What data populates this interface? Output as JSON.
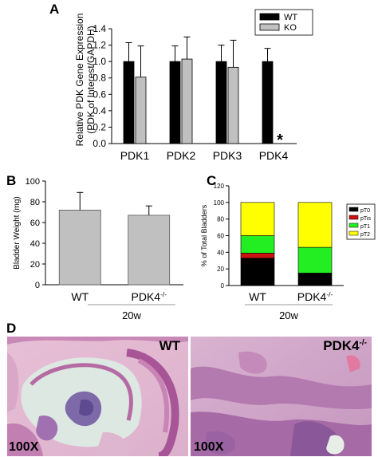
{
  "panels": {
    "a": "A",
    "b": "B",
    "c": "C",
    "d": "D"
  },
  "chart_data": [
    {
      "id": "A",
      "type": "bar",
      "ylabel": [
        "Relative PDK Gene Expression",
        "(PDK of Interest/GAPDH)"
      ],
      "categories": [
        "PDK1",
        "PDK2",
        "PDK3",
        "PDK4"
      ],
      "ylim": [
        0,
        1.4
      ],
      "yticks": [
        "0.0",
        "0.2",
        "0.4",
        "0.6",
        "0.8",
        "1.0",
        "1.2",
        "1.4"
      ],
      "series": [
        {
          "name": "WT",
          "color": "#000000",
          "values": [
            1.0,
            1.0,
            1.0,
            1.0
          ],
          "errors": [
            0.23,
            0.19,
            0.2,
            0.16
          ]
        },
        {
          "name": "KO",
          "color": "#c0c0c0",
          "values": [
            0.81,
            1.03,
            0.93,
            0.0
          ],
          "errors": [
            0.38,
            0.27,
            0.33,
            0.0
          ]
        }
      ],
      "annotations": [
        {
          "category": "PDK4",
          "text": "*"
        }
      ],
      "legend": "top-right"
    },
    {
      "id": "B",
      "type": "bar",
      "ylabel": "Bladder Weight (mg)",
      "categories": [
        "WT",
        "PDK4"
      ],
      "category_superscript": [
        "",
        "-/-"
      ],
      "group_label": "20w",
      "ylim": [
        0,
        100
      ],
      "yticks": [
        "0",
        "20",
        "40",
        "60",
        "80",
        "100"
      ],
      "series": [
        {
          "color": "#c0c0c0",
          "values": [
            72,
            67
          ],
          "errors": [
            17,
            9
          ]
        }
      ]
    },
    {
      "id": "C",
      "type": "bar",
      "stacked": true,
      "ylabel": "% of Total Bladders",
      "categories": [
        "WT",
        "PDK4"
      ],
      "category_superscript": [
        "",
        "-/-"
      ],
      "group_label": "20w",
      "ylim": [
        0,
        120
      ],
      "yticks": [
        "0",
        "20",
        "40",
        "60",
        "80",
        "100",
        "120"
      ],
      "series": [
        {
          "name": "pT0",
          "color": "#000000",
          "values": [
            33,
            15
          ]
        },
        {
          "name": "pTis",
          "color": "#cc1111",
          "values": [
            6,
            0
          ]
        },
        {
          "name": "pT1",
          "color": "#22ee22",
          "values": [
            21,
            31
          ]
        },
        {
          "name": "pT2",
          "color": "#ffff00",
          "values": [
            40,
            54
          ]
        }
      ],
      "legend": "right"
    }
  ],
  "micrographs": [
    {
      "label": "WT",
      "magnification": "100X"
    },
    {
      "label": "PDK4",
      "label_superscript": "-/-",
      "magnification": "100X"
    }
  ]
}
